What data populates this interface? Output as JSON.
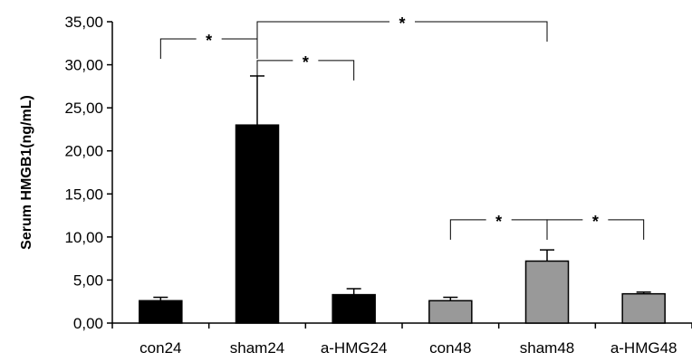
{
  "chart_data": {
    "type": "bar",
    "title": "",
    "xlabel": "",
    "ylabel": "Serum HMGB1(ng/mL)",
    "ylim": [
      0,
      35
    ],
    "yticks": [
      "0,00",
      "5,00",
      "10,00",
      "15,00",
      "20,00",
      "25,00",
      "30,00",
      "35,00"
    ],
    "ytick_values": [
      0,
      5,
      10,
      15,
      20,
      25,
      30,
      35
    ],
    "categories": [
      "con24",
      "sham24",
      "a-HMG24",
      "con48",
      "sham48",
      "a-HMG48"
    ],
    "values": [
      2.6,
      23.0,
      3.3,
      2.6,
      7.2,
      3.4
    ],
    "errors": [
      0.4,
      5.7,
      0.7,
      0.4,
      1.3,
      0.2
    ],
    "bar_colors": [
      "#000000",
      "#000000",
      "#000000",
      "#999999",
      "#999999",
      "#999999"
    ],
    "grid": false,
    "significance": [
      {
        "from": 0,
        "to": 1,
        "label": "*",
        "level": 33.0
      },
      {
        "from": 1,
        "to": 2,
        "label": "*",
        "level": 30.5
      },
      {
        "from": 1,
        "to": 4,
        "label": "*",
        "level": 35.0
      },
      {
        "from": 3,
        "to": 4,
        "label": "*",
        "level": 12.0
      },
      {
        "from": 4,
        "to": 5,
        "label": "*",
        "level": 12.0
      }
    ]
  }
}
